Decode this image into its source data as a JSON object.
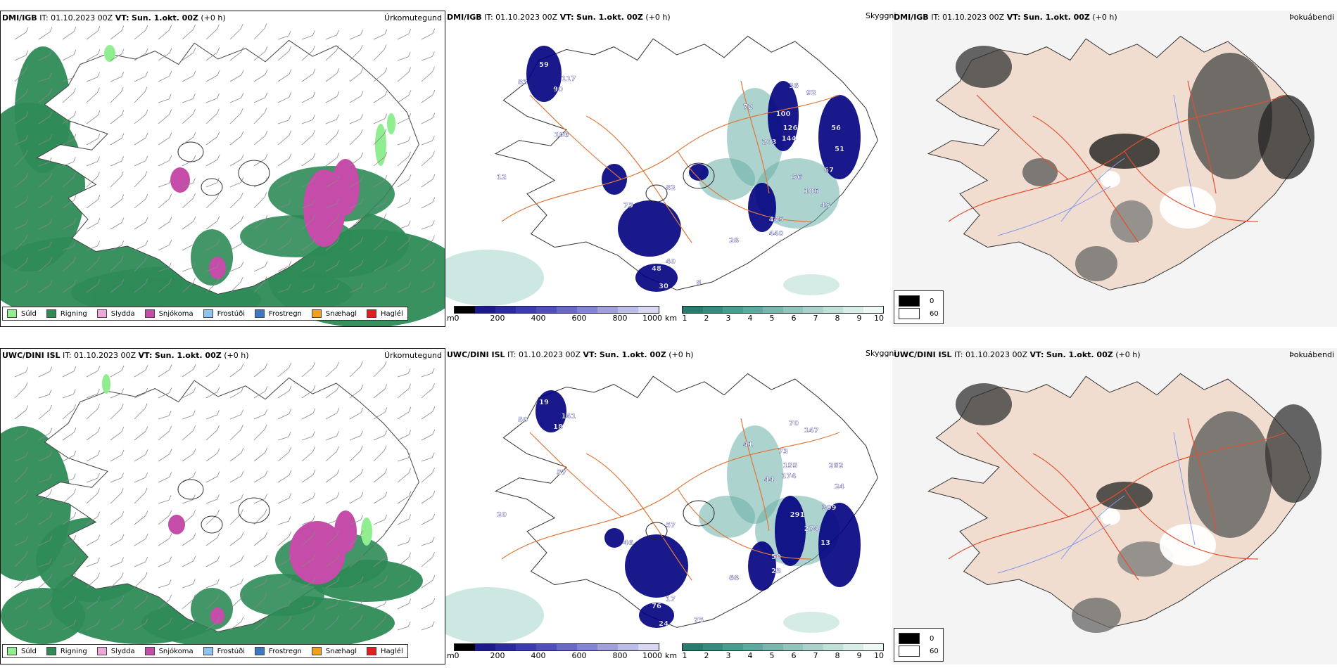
{
  "colors": {
    "rain": "#2e8b57",
    "drizzle": "#90ee90",
    "sleet": "#f0a8d8",
    "snow": "#c54ca8",
    "frost_drizzle": "#8fc4f0",
    "freezing_rain": "#3a78c4",
    "snow_pellets": "#f0a020",
    "hail": "#e02020",
    "ceiling_low": "#000080",
    "land_tan": "#f0ddd0",
    "road": "#e0783a"
  },
  "rows": [
    {
      "precip": {
        "model": "DMI/IGB",
        "it_label": "IT:",
        "it_value": "01.10.2023 00Z",
        "vt_label": "VT:",
        "vt_value": "Sun. 1.okt. 00Z",
        "offset": "(+0 h)",
        "title": "Úrkomutegund"
      },
      "cloud": {
        "model": "DMI/IGB",
        "it_label": "IT:",
        "it_value": "01.10.2023 00Z",
        "vt_label": "VT:",
        "vt_value": "Sun. 1.okt. 00Z",
        "offset": "(+0 h)",
        "title": "Skyggni",
        "labels": [
          "59",
          "90",
          "117",
          "106",
          "12",
          "83",
          "100",
          "126",
          "144",
          "36",
          "92",
          "56",
          "51",
          "67",
          "56",
          "106",
          "45",
          "203",
          "72",
          "82",
          "75",
          "445",
          "440",
          "28",
          "40",
          "48",
          "30",
          "8"
        ]
      },
      "fog": {
        "model": "DMI/IGB",
        "it_label": "IT:",
        "it_value": "01.10.2023 00Z",
        "vt_label": "VT:",
        "vt_value": "Sun. 1.okt. 00Z",
        "offset": "(+0 h)",
        "title": "Þokuábendi",
        "legend_top": "0",
        "legend_bottom": "60"
      }
    },
    {
      "precip": {
        "model": "UWC/DINI ISL",
        "it_label": "IT:",
        "it_value": "01.10.2023 00Z",
        "vt_label": "VT:",
        "vt_value": "Sun. 1.okt. 00Z",
        "offset": "(+0 h)",
        "title": "Úrkomutegund"
      },
      "cloud": {
        "model": "UWC/DINI ISL",
        "it_label": "IT:",
        "it_value": "01.10.2023 00Z",
        "vt_label": "VT:",
        "vt_value": "Sun. 1.okt. 00Z",
        "offset": "(+0 h)",
        "title": "Skyggni",
        "labels": [
          "19",
          "18",
          "141",
          "57",
          "20",
          "50",
          "73",
          "155",
          "174",
          "70",
          "147",
          "262",
          "24",
          "309",
          "291",
          "274",
          "13",
          "44",
          "41",
          "57",
          "46",
          "50",
          "23",
          "68",
          "17",
          "76",
          "24",
          "75"
        ]
      },
      "fog": {
        "model": "UWC/DINI ISL",
        "it_label": "IT:",
        "it_value": "01.10.2023 00Z",
        "vt_label": "VT:",
        "vt_value": "Sun. 1.okt. 00Z",
        "offset": "(+0 h)",
        "title": "Þokuábendi",
        "legend_top": "0",
        "legend_bottom": "60"
      }
    }
  ],
  "precip_legend": [
    "Súld",
    "Rigning",
    "Slydda",
    "Snjókoma",
    "Frostúði",
    "Frostregn",
    "Snæhagl",
    "Haglél"
  ],
  "ceiling_bar": {
    "unit": "m",
    "ticks": [
      "0",
      "200",
      "400",
      "600",
      "800",
      "1000"
    ]
  },
  "visibility_bar": {
    "unit": "km",
    "ticks": [
      "1",
      "2",
      "3",
      "4",
      "5",
      "6",
      "7",
      "8",
      "9",
      "10"
    ]
  }
}
